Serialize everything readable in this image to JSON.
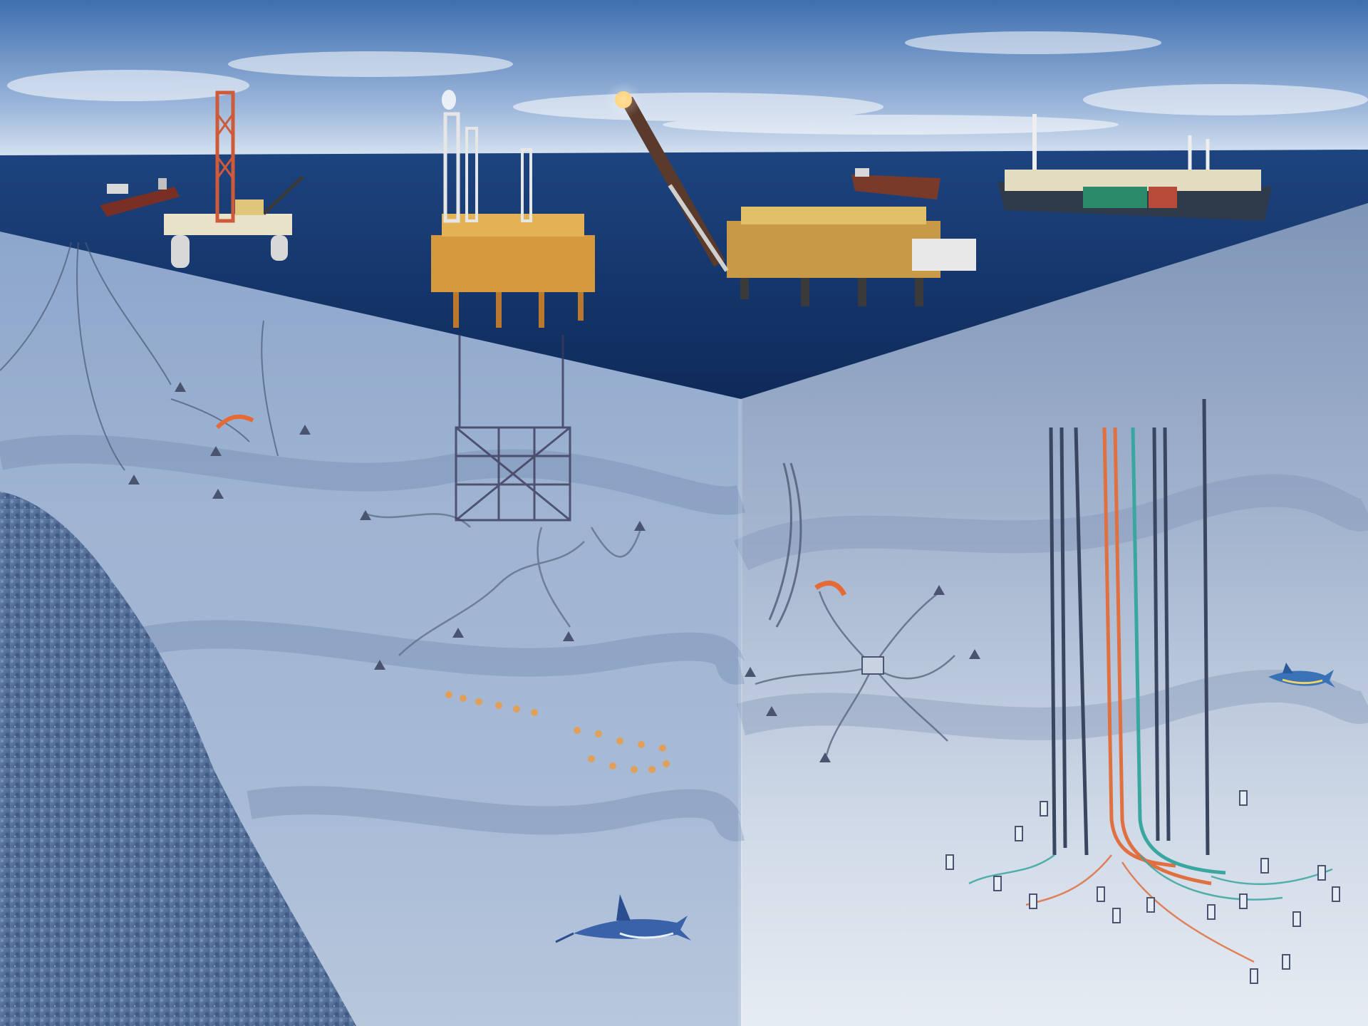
{
  "scene": {
    "subject": "offshore-oil-and-gas-field-cutaway",
    "colors": {
      "sky_top": "#4a78b8",
      "sky_bottom": "#c8d8ea",
      "ocean_surface": "#1c3f7a",
      "ocean_deep": "#0f2a5c",
      "water_column_left": "#8fa6c8",
      "water_column_right": "#8ea3c2",
      "seabed_left": "#b9c9de",
      "seabed_right": "#dfe6f0",
      "rock": "#5b759c",
      "platform_orange": "#d89a3a",
      "platform_yellow": "#e8c25a",
      "pipeline_orange": "#e0703a",
      "pipeline_teal": "#3aa6a0",
      "riser_dark": "#3a4660"
    },
    "icons": [
      "semi-submersible-rig-icon",
      "fixed-platform-icon",
      "flare-boom-platform-icon",
      "fpso-vessel-icon",
      "tanker-ship-icon",
      "subsea-wellhead-icon",
      "fish-icon"
    ]
  }
}
